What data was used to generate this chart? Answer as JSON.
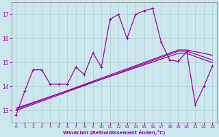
{
  "xlabel": "Windchill (Refroidissement éolien,°C)",
  "background_color": "#cce8ee",
  "line_color": "#990099",
  "grid_color": "#aacccc",
  "x_data": [
    0,
    1,
    2,
    3,
    4,
    5,
    6,
    7,
    8,
    9,
    10,
    11,
    12,
    13,
    14,
    15,
    16,
    17,
    18,
    19,
    20,
    21,
    22,
    23
  ],
  "y_main": [
    12.8,
    13.8,
    14.7,
    14.7,
    14.1,
    14.1,
    14.1,
    14.8,
    14.5,
    15.4,
    14.8,
    16.8,
    17.0,
    16.0,
    17.0,
    17.15,
    17.25,
    15.85,
    15.1,
    15.05,
    15.45,
    13.25,
    14.0,
    14.85
  ],
  "y_reg1": [
    13.05,
    13.18,
    13.31,
    13.44,
    13.57,
    13.7,
    13.83,
    13.96,
    14.09,
    14.22,
    14.35,
    14.48,
    14.61,
    14.74,
    14.87,
    15.0,
    15.13,
    15.26,
    15.39,
    15.52,
    15.52,
    15.45,
    15.38,
    15.3
  ],
  "y_reg2": [
    13.1,
    13.22,
    13.34,
    13.46,
    13.58,
    13.7,
    13.82,
    13.94,
    14.06,
    14.18,
    14.3,
    14.42,
    14.54,
    14.66,
    14.78,
    14.9,
    15.02,
    15.14,
    15.26,
    15.38,
    15.38,
    15.25,
    15.12,
    15.0
  ],
  "y_reg3": [
    13.0,
    13.13,
    13.26,
    13.39,
    13.52,
    13.65,
    13.78,
    13.91,
    14.04,
    14.17,
    14.3,
    14.43,
    14.56,
    14.69,
    14.82,
    14.95,
    15.08,
    15.21,
    15.34,
    15.47,
    15.47,
    15.35,
    15.23,
    15.1
  ],
  "ylim": [
    12.5,
    17.5
  ],
  "yticks": [
    13,
    14,
    15,
    16,
    17
  ],
  "xlim": [
    -0.5,
    23.5
  ],
  "xticks": [
    0,
    1,
    2,
    3,
    4,
    5,
    6,
    7,
    8,
    9,
    10,
    11,
    12,
    13,
    14,
    15,
    16,
    17,
    18,
    19,
    20,
    21,
    22,
    23
  ]
}
